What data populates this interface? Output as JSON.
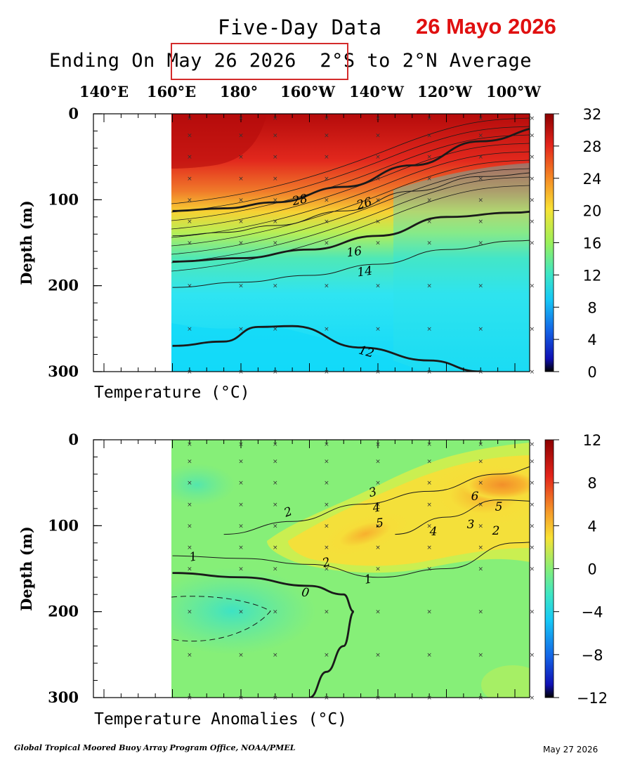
{
  "header": {
    "title": "Five-Day Data",
    "stamp": "26 Mayo 2026",
    "subtitle_prefix": "Ending On",
    "date": "May 26 2026",
    "region": "2°S to 2°N Average"
  },
  "longitude_labels": [
    "140°E",
    "160°E",
    "180°",
    "160°W",
    "140°W",
    "120°W",
    "100°W"
  ],
  "footer": {
    "credit": "Global Tropical Moored Buoy Array Program Office, NOAA/PMEL",
    "date": "May 27 2026"
  },
  "colors": {
    "stamp": "#e01010",
    "box": "#d42b2b"
  },
  "chart_data": [
    {
      "type": "heatmap",
      "xlabel": "Temperature (°C)",
      "ylabel": "Depth (m)",
      "x_ticks": [
        "140°E",
        "160°E",
        "180°",
        "160°W",
        "140°W",
        "120°W",
        "100°W"
      ],
      "y_ticks": [
        0,
        100,
        200,
        300
      ],
      "ylim": [
        300,
        0
      ],
      "xlim_deg_east": [
        130,
        270
      ],
      "data_start_deg_east": 160,
      "colorbar": {
        "ticks": [
          32,
          28,
          24,
          20,
          16,
          12,
          8,
          4,
          0
        ],
        "range": [
          0,
          32
        ]
      },
      "contour_labels": [
        "28",
        "26",
        "16",
        "14",
        "12"
      ],
      "contours": [
        {
          "value": 28,
          "bold": true,
          "lon": [
            160,
            175,
            190,
            210,
            230,
            250,
            270
          ],
          "depth": [
            113,
            110,
            103,
            85,
            60,
            32,
            15
          ]
        },
        {
          "value": 26,
          "bold": false,
          "lon": [
            160,
            175,
            190,
            210,
            230,
            250,
            270
          ],
          "depth": [
            142,
            138,
            130,
            113,
            90,
            73,
            68
          ]
        },
        {
          "value": 16,
          "bold": true,
          "lon": [
            160,
            180,
            200,
            220,
            240,
            260,
            270
          ],
          "depth": [
            172,
            168,
            158,
            142,
            120,
            115,
            112
          ]
        },
        {
          "value": 14,
          "bold": false,
          "lon": [
            160,
            180,
            200,
            220,
            240,
            260,
            270
          ],
          "depth": [
            202,
            196,
            188,
            175,
            158,
            148,
            146
          ]
        },
        {
          "value": 12,
          "bold": true,
          "lon": [
            160,
            175,
            185,
            195,
            215,
            235,
            250
          ],
          "depth": [
            270,
            265,
            248,
            247,
            272,
            287,
            300
          ]
        }
      ]
    },
    {
      "type": "heatmap",
      "xlabel": "Temperature Anomalies (°C)",
      "ylabel": "Depth (m)",
      "x_ticks": [
        "140°E",
        "160°E",
        "180°",
        "160°W",
        "140°W",
        "120°W",
        "100°W"
      ],
      "y_ticks": [
        0,
        100,
        200,
        300
      ],
      "ylim": [
        300,
        0
      ],
      "xlim_deg_east": [
        130,
        270
      ],
      "data_start_deg_east": 160,
      "colorbar": {
        "ticks": [
          12,
          8,
          4,
          0,
          -4,
          -8,
          -12
        ],
        "range": [
          -12,
          12
        ]
      },
      "contour_labels": [
        "2",
        "3",
        "4",
        "5",
        "6",
        "5",
        "3",
        "4",
        "2",
        "1",
        "2",
        "1",
        "0"
      ],
      "anomaly_core": {
        "lon": 260,
        "depth": 55,
        "max": 8
      },
      "contours": [
        {
          "value": 0,
          "bold": true,
          "lon": [
            160,
            180,
            200,
            210,
            213,
            210,
            205,
            200
          ],
          "depth": [
            155,
            160,
            170,
            180,
            200,
            240,
            270,
            300
          ]
        },
        {
          "value": 1,
          "bold": false,
          "lon": [
            160,
            180,
            200,
            220,
            240,
            260,
            270
          ],
          "depth": [
            135,
            138,
            145,
            160,
            150,
            120,
            118
          ]
        },
        {
          "value": 2,
          "bold": false,
          "lon": [
            175,
            195,
            215,
            235,
            255,
            270
          ],
          "depth": [
            110,
            95,
            75,
            60,
            40,
            28
          ]
        },
        {
          "value": 5,
          "bold": false,
          "lon": [
            225,
            240,
            255,
            270
          ],
          "depth": [
            110,
            90,
            70,
            72
          ]
        }
      ]
    }
  ]
}
